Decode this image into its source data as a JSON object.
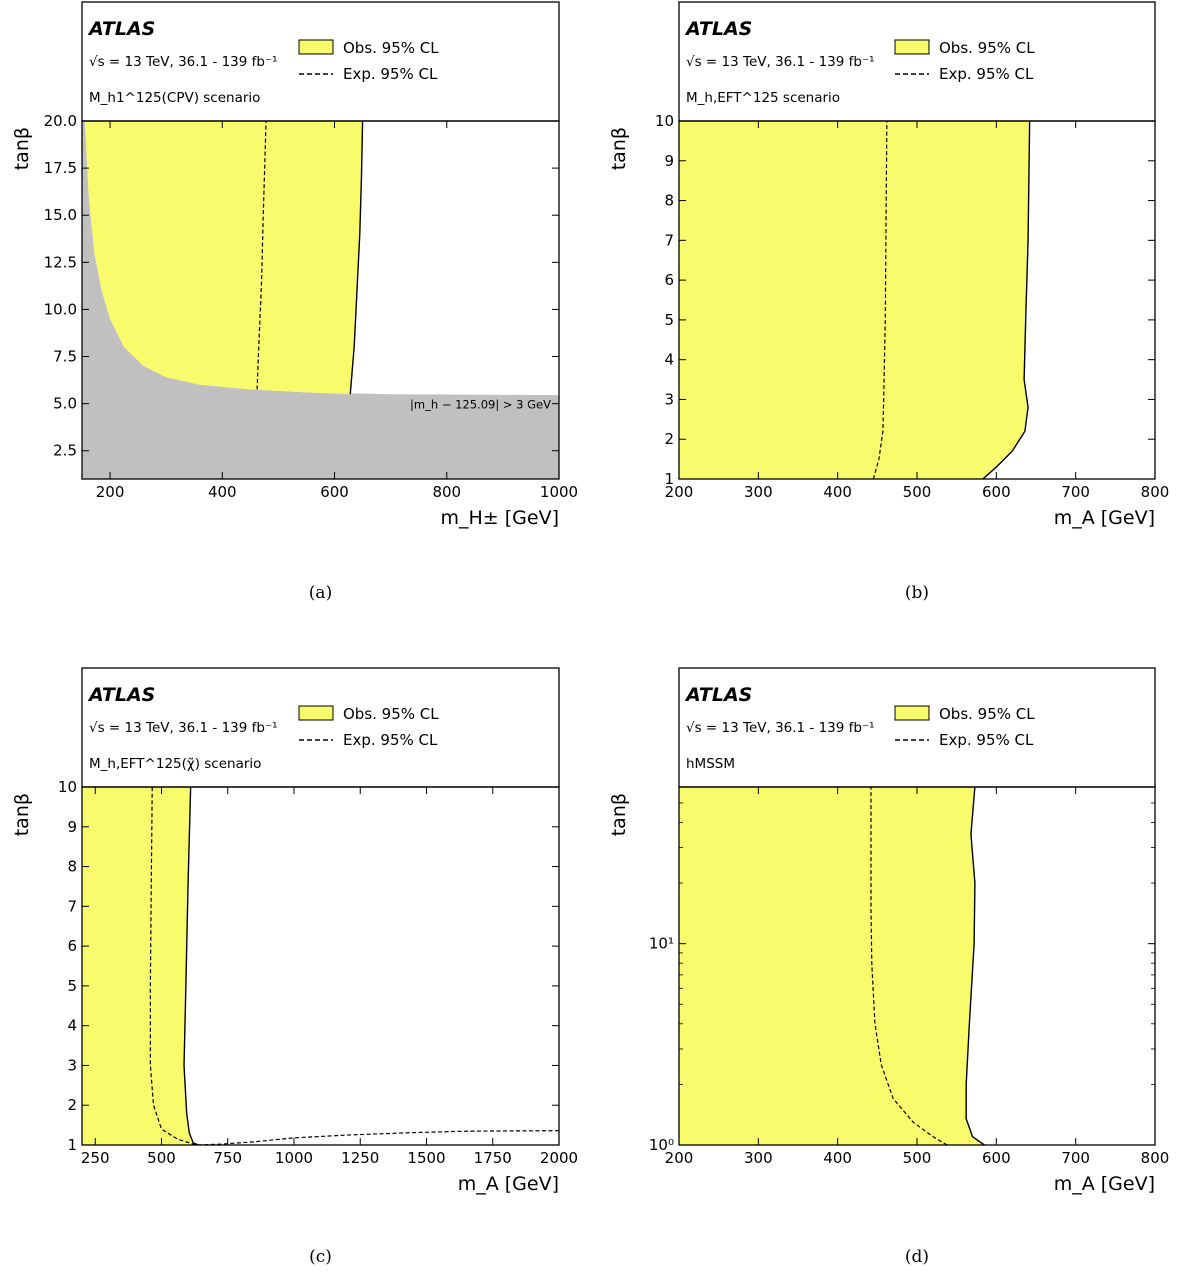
{
  "figure": {
    "experiment": "ATLAS",
    "energy_line": "√s = 13 TeV, 36.1 - 139 fb⁻¹",
    "obs_label": "Obs. 95% CL",
    "exp_label": "Exp. 95% CL",
    "y_axis_label": "tanβ",
    "colors": {
      "observed_fill": "#f8fc6c",
      "excluded_region": "#c0c0c0",
      "frame": "#000000"
    }
  },
  "chart_data": [
    {
      "id": "a",
      "type": "area",
      "subfigure_label": "(a)",
      "scenario": "M_h1^125(CPV) scenario",
      "x_axis_label": "m_H± [GeV]",
      "y_axis_label": "tanβ",
      "xlim": [
        150,
        1000
      ],
      "ylim": [
        1.0,
        20.0
      ],
      "y_scale": "linear",
      "x_ticks": [
        200,
        400,
        600,
        800,
        1000
      ],
      "x_tick_labels": [
        "200",
        "400",
        "600",
        "800",
        "1000"
      ],
      "y_ticks": [
        2.5,
        5.0,
        7.5,
        10.0,
        12.5,
        15.0,
        17.5,
        20.0
      ],
      "y_tick_labels": [
        "2.5",
        "5.0",
        "7.5",
        "10.0",
        "12.5",
        "15.0",
        "17.5",
        "20.0"
      ],
      "annotation": "|m_h − 125.09| > 3 GeV",
      "excluded_region_boundary": [
        [
          155,
          20.0
        ],
        [
          162,
          16.0
        ],
        [
          172,
          13.0
        ],
        [
          185,
          11.0
        ],
        [
          200,
          9.5
        ],
        [
          225,
          8.0
        ],
        [
          260,
          7.0
        ],
        [
          300,
          6.4
        ],
        [
          360,
          6.0
        ],
        [
          450,
          5.75
        ],
        [
          550,
          5.6
        ],
        [
          700,
          5.5
        ],
        [
          1000,
          5.45
        ]
      ],
      "observed_limit": [
        [
          628,
          5.5
        ],
        [
          635,
          8.0
        ],
        [
          640,
          11.0
        ],
        [
          645,
          14.0
        ],
        [
          648,
          17.0
        ],
        [
          650,
          20.0
        ]
      ],
      "expected_limit": [
        [
          462,
          5.75
        ],
        [
          465,
          8.0
        ],
        [
          470,
          11.5
        ],
        [
          473,
          15.0
        ],
        [
          476,
          18.0
        ],
        [
          478,
          20.0
        ]
      ]
    },
    {
      "id": "b",
      "type": "area",
      "subfigure_label": "(b)",
      "scenario": "M_h,EFT^125 scenario",
      "x_axis_label": "m_A [GeV]",
      "y_axis_label": "tanβ",
      "xlim": [
        200,
        800
      ],
      "ylim": [
        1,
        10
      ],
      "y_scale": "linear",
      "x_ticks": [
        200,
        300,
        400,
        500,
        600,
        700,
        800
      ],
      "x_tick_labels": [
        "200",
        "300",
        "400",
        "500",
        "600",
        "700",
        "800"
      ],
      "y_ticks": [
        1,
        2,
        3,
        4,
        5,
        6,
        7,
        8,
        9,
        10
      ],
      "y_tick_labels": [
        "1",
        "2",
        "3",
        "4",
        "5",
        "6",
        "7",
        "8",
        "9",
        "10"
      ],
      "observed_limit": [
        [
          583,
          1.0
        ],
        [
          600,
          1.3
        ],
        [
          620,
          1.7
        ],
        [
          636,
          2.2
        ],
        [
          640,
          2.8
        ],
        [
          635,
          3.5
        ],
        [
          637,
          5.0
        ],
        [
          640,
          7.0
        ],
        [
          642,
          10.0
        ]
      ],
      "expected_limit": [
        [
          445,
          1.0
        ],
        [
          452,
          1.5
        ],
        [
          457,
          2.2
        ],
        [
          458,
          3.0
        ],
        [
          460,
          5.0
        ],
        [
          461,
          7.5
        ],
        [
          462,
          10.0
        ]
      ]
    },
    {
      "id": "c",
      "type": "area",
      "subfigure_label": "(c)",
      "scenario": "M_h,EFT^125(χ̃) scenario",
      "x_axis_label": "m_A [GeV]",
      "y_axis_label": "tanβ",
      "xlim": [
        200,
        2000
      ],
      "ylim": [
        1,
        10
      ],
      "y_scale": "linear",
      "x_ticks": [
        250,
        500,
        750,
        1000,
        1250,
        1500,
        1750,
        2000
      ],
      "x_tick_labels": [
        "250",
        "500",
        "750",
        "1000",
        "1250",
        "1500",
        "1750",
        "2000"
      ],
      "y_ticks": [
        1,
        2,
        3,
        4,
        5,
        6,
        7,
        8,
        9,
        10
      ],
      "y_tick_labels": [
        "1",
        "2",
        "3",
        "4",
        "5",
        "6",
        "7",
        "8",
        "9",
        "10"
      ],
      "observed_limit": [
        [
          640,
          1.0
        ],
        [
          620,
          1.05
        ],
        [
          605,
          1.3
        ],
        [
          595,
          1.8
        ],
        [
          585,
          3.0
        ],
        [
          592,
          5.0
        ],
        [
          600,
          7.5
        ],
        [
          610,
          10.0
        ]
      ],
      "expected_limit": [
        [
          2000,
          1.36
        ],
        [
          1700,
          1.35
        ],
        [
          1600,
          1.34
        ],
        [
          1400,
          1.3
        ],
        [
          1200,
          1.25
        ],
        [
          1000,
          1.18
        ],
        [
          850,
          1.08
        ],
        [
          720,
          1.02
        ],
        [
          630,
          1.0
        ],
        [
          560,
          1.15
        ],
        [
          500,
          1.4
        ],
        [
          470,
          2.0
        ],
        [
          458,
          3.0
        ],
        [
          458,
          5.0
        ],
        [
          462,
          8.0
        ],
        [
          465,
          10.0
        ]
      ]
    },
    {
      "id": "d",
      "type": "area",
      "subfigure_label": "(d)",
      "scenario": "hMSSM",
      "x_axis_label": "m_A [GeV]",
      "y_axis_label": "tanβ",
      "xlim": [
        200,
        800
      ],
      "ylim": [
        1,
        60
      ],
      "y_scale": "log",
      "x_ticks": [
        200,
        300,
        400,
        500,
        600,
        700,
        800
      ],
      "x_tick_labels": [
        "200",
        "300",
        "400",
        "500",
        "600",
        "700",
        "800"
      ],
      "y_ticks": [
        1,
        10
      ],
      "y_tick_labels": [
        "10⁰",
        "10¹"
      ],
      "observed_limit": [
        [
          585,
          1.0
        ],
        [
          570,
          1.1
        ],
        [
          562,
          1.35
        ],
        [
          562,
          2.0
        ],
        [
          566,
          4.0
        ],
        [
          572,
          10.0
        ],
        [
          573,
          20.0
        ],
        [
          568,
          35.0
        ],
        [
          573,
          60.0
        ]
      ],
      "expected_limit": [
        [
          538,
          1.0
        ],
        [
          520,
          1.1
        ],
        [
          495,
          1.3
        ],
        [
          470,
          1.7
        ],
        [
          455,
          2.5
        ],
        [
          447,
          4.0
        ],
        [
          443,
          8.0
        ],
        [
          442,
          15.0
        ],
        [
          442,
          30.0
        ],
        [
          442,
          60.0
        ]
      ]
    }
  ]
}
